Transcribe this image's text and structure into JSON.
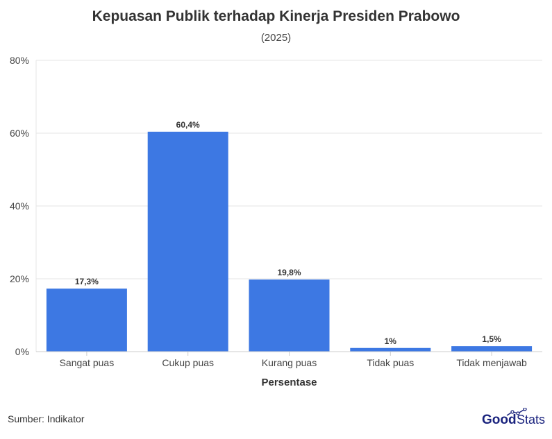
{
  "chart_data": {
    "type": "bar",
    "title": "Kepuasan Publik terhadap Kinerja Presiden Prabowo",
    "subtitle": "(2025)",
    "xlabel": "Persentase",
    "ylabel": "",
    "categories": [
      "Sangat puas",
      "Cukup puas",
      "Kurang puas",
      "Tidak puas",
      "Tidak menjawab"
    ],
    "values": [
      17.3,
      60.4,
      19.8,
      1,
      1.5
    ],
    "data_labels": [
      "17,3%",
      "60,4%",
      "19,8%",
      "1%",
      "1,5%"
    ],
    "ylim": [
      0,
      80
    ],
    "yticks": [
      0,
      20,
      40,
      60,
      80
    ],
    "ytick_labels": [
      "0%",
      "20%",
      "40%",
      "60%",
      "80%"
    ],
    "grid": true,
    "bar_color": "#3d78e3"
  },
  "footer": {
    "source": "Sumber: Indikator",
    "logo_text": "GoodStats"
  }
}
